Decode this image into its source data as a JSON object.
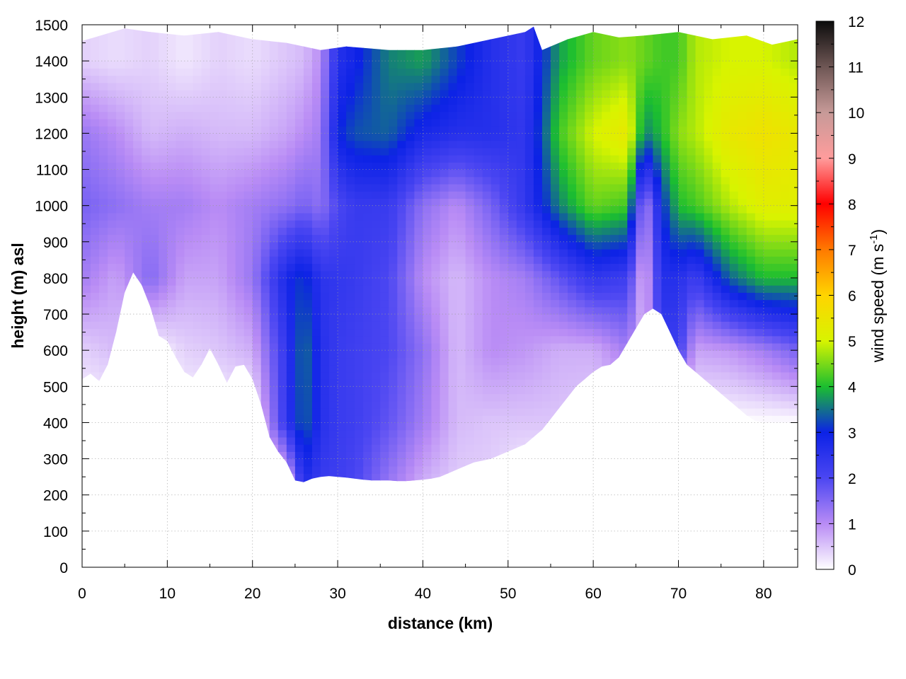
{
  "chart_data": {
    "type": "heatmap",
    "title": "",
    "xlabel": "distance (km)",
    "ylabel": "height (m) asl",
    "colorbar": {
      "label_main": "wind speed (m s",
      "label_sup": "-1",
      "label_close": ")",
      "range": [
        0,
        12
      ],
      "ticks": [
        "0",
        "1",
        "2",
        "3",
        "4",
        "5",
        "6",
        "7",
        "8",
        "9",
        "10",
        "11",
        "12"
      ],
      "colormap": [
        "#ffffff",
        "#b98cf5",
        "#4b46f2",
        "#0c22e6",
        "#1bbe30",
        "#d8f400",
        "#ffd400",
        "#ff7a00",
        "#ff0000",
        "#ff9c9c",
        "#c79a98",
        "#6e5654",
        "#0c0c0c"
      ]
    },
    "xlim": [
      0,
      84
    ],
    "ylim": [
      0,
      1500
    ],
    "x_ticks": [
      "0",
      "10",
      "20",
      "30",
      "40",
      "50",
      "60",
      "70",
      "80"
    ],
    "y_ticks": [
      "0",
      "100",
      "200",
      "300",
      "400",
      "500",
      "600",
      "700",
      "800",
      "900",
      "1000",
      "1100",
      "1200",
      "1300",
      "1400",
      "1500"
    ],
    "grid": true,
    "terrain_km": [
      0,
      1,
      2,
      3,
      4,
      5,
      6,
      7,
      8,
      9,
      10,
      11,
      12,
      13,
      14,
      15,
      16,
      17,
      18,
      19,
      20,
      21,
      22,
      23,
      24,
      25,
      26,
      27,
      28,
      29,
      30,
      31,
      32,
      33,
      34,
      35,
      36,
      37,
      38,
      39,
      40,
      41,
      42,
      43,
      44,
      45,
      46,
      47,
      48,
      49,
      50,
      51,
      52,
      53,
      54,
      55,
      56,
      57,
      58,
      59,
      60,
      61,
      62,
      63,
      64,
      65,
      66,
      67,
      68,
      69,
      70,
      71,
      72,
      73,
      74,
      75,
      76,
      77,
      78,
      79,
      80,
      81,
      82,
      83,
      84
    ],
    "terrain_m": [
      520,
      535,
      515,
      560,
      650,
      760,
      815,
      780,
      720,
      640,
      625,
      580,
      540,
      525,
      560,
      605,
      560,
      510,
      555,
      560,
      520,
      450,
      360,
      320,
      290,
      240,
      235,
      245,
      250,
      252,
      250,
      248,
      245,
      242,
      240,
      240,
      240,
      238,
      238,
      240,
      242,
      245,
      250,
      260,
      270,
      280,
      290,
      295,
      300,
      310,
      320,
      330,
      340,
      360,
      380,
      410,
      440,
      470,
      500,
      520,
      540,
      555,
      560,
      580,
      620,
      660,
      700,
      715,
      700,
      650,
      600,
      560,
      540,
      520,
      500,
      480,
      460,
      440,
      420,
      405,
      400,
      400,
      400,
      400,
      400
    ],
    "top_km": [
      0,
      5,
      8,
      12,
      16,
      20,
      24,
      28,
      31,
      36,
      40,
      44,
      48,
      52,
      53,
      54,
      57,
      60,
      63,
      66,
      70,
      74,
      78,
      81,
      84
    ],
    "top_m": [
      1455,
      1490,
      1480,
      1470,
      1480,
      1460,
      1450,
      1430,
      1440,
      1430,
      1430,
      1440,
      1460,
      1480,
      1495,
      1430,
      1460,
      1480,
      1465,
      1470,
      1480,
      1460,
      1470,
      1445,
      1460
    ],
    "speed_x_km": [
      0,
      4,
      8,
      12,
      16,
      20,
      24,
      26,
      28,
      30,
      32,
      36,
      40,
      44,
      48,
      52,
      56,
      60,
      64,
      66,
      68,
      70,
      72,
      76,
      80,
      84
    ],
    "speed_y_m": [
      200,
      400,
      600,
      800,
      1000,
      1200,
      1400
    ],
    "speed_ms": [
      [
        0,
        0,
        0,
        0,
        0,
        0,
        0,
        2.5,
        2.2,
        2.2,
        2.0,
        1.2,
        0.6,
        0.4,
        0.4,
        0,
        0,
        0,
        0,
        0,
        0,
        0,
        0,
        0,
        0,
        0
      ],
      [
        0,
        0,
        0,
        0,
        0,
        0,
        2.4,
        3.5,
        2.6,
        2.3,
        2.2,
        1.8,
        1.2,
        0.6,
        0.5,
        0.5,
        0.5,
        0.4,
        0.3,
        0,
        0,
        0,
        0,
        0,
        0,
        0
      ],
      [
        0.4,
        0.6,
        0,
        0.4,
        0.5,
        0.7,
        2.4,
        3.6,
        2.6,
        2.3,
        2.2,
        2.0,
        1.4,
        0.6,
        1.0,
        0.9,
        0.7,
        0.7,
        1.2,
        0.5,
        2.3,
        2.2,
        0.8,
        0.9,
        1.2,
        1.6
      ],
      [
        1.2,
        0.8,
        1.5,
        0.8,
        0.8,
        1.3,
        2.8,
        3.2,
        2.5,
        2.4,
        2.3,
        2.0,
        1.0,
        0.6,
        1.0,
        1.2,
        1.8,
        2.4,
        2.2,
        0.5,
        2.6,
        2.6,
        2.2,
        3.4,
        4.0,
        4.0
      ],
      [
        1.6,
        1.4,
        1.2,
        1.2,
        1.0,
        1.2,
        1.4,
        1.6,
        1.4,
        2.0,
        2.3,
        2.3,
        1.4,
        1.0,
        1.6,
        2.4,
        3.6,
        4.4,
        4.2,
        1.0,
        3.0,
        4.0,
        4.2,
        4.8,
        5.2,
        5.2
      ],
      [
        1.3,
        1.0,
        0.6,
        0.7,
        0.6,
        0.6,
        0.8,
        1.0,
        1.2,
        3.0,
        3.3,
        3.4,
        2.8,
        2.6,
        2.6,
        2.4,
        4.2,
        5.0,
        5.4,
        3.6,
        4.0,
        4.6,
        4.8,
        5.4,
        5.6,
        5.4
      ],
      [
        0.4,
        0.3,
        0.4,
        0.2,
        0.4,
        0.3,
        0.5,
        0.6,
        1.0,
        2.6,
        2.9,
        3.6,
        3.8,
        3.2,
        2.6,
        2.3,
        3.8,
        4.4,
        4.6,
        4.4,
        4.2,
        4.2,
        4.8,
        5.0,
        5.0,
        4.8
      ]
    ]
  }
}
